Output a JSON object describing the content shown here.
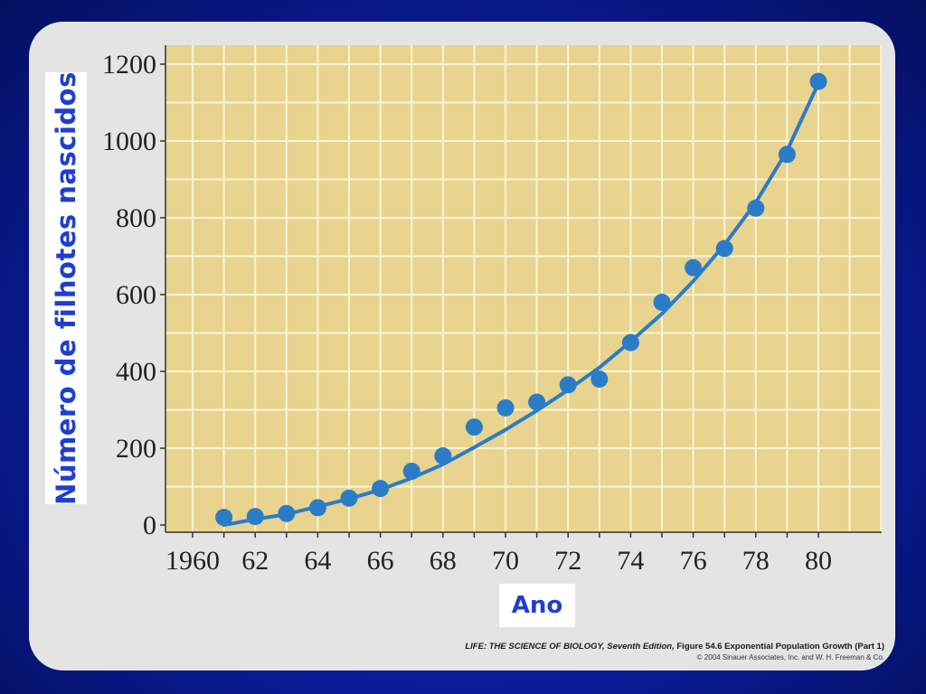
{
  "chart_data": {
    "type": "scatter",
    "xlabel": "Ano",
    "ylabel": "Número de filhotes nascidos",
    "x_ticks": [
      "1960",
      "62",
      "64",
      "66",
      "68",
      "70",
      "72",
      "74",
      "76",
      "78",
      "80"
    ],
    "x_tick_values": [
      1960,
      1962,
      1964,
      1966,
      1968,
      1970,
      1972,
      1974,
      1976,
      1978,
      1980
    ],
    "y_ticks": [
      "0",
      "200",
      "400",
      "600",
      "800",
      "1000",
      "1200"
    ],
    "y_tick_values": [
      0,
      200,
      400,
      600,
      800,
      1000,
      1200
    ],
    "xlim": [
      1959,
      1982
    ],
    "ylim": [
      0,
      1200
    ],
    "grid": true,
    "colors": {
      "background": "#e8d38f",
      "grid": "#fbf3d4",
      "points": "#2a7cc7",
      "curve": "#2a7cc7"
    },
    "points": [
      {
        "x": 1961,
        "y": 20
      },
      {
        "x": 1962,
        "y": 22
      },
      {
        "x": 1963,
        "y": 30
      },
      {
        "x": 1964,
        "y": 45
      },
      {
        "x": 1965,
        "y": 70
      },
      {
        "x": 1966,
        "y": 95
      },
      {
        "x": 1967,
        "y": 140
      },
      {
        "x": 1968,
        "y": 180
      },
      {
        "x": 1969,
        "y": 255
      },
      {
        "x": 1970,
        "y": 305
      },
      {
        "x": 1971,
        "y": 320
      },
      {
        "x": 1972,
        "y": 365
      },
      {
        "x": 1973,
        "y": 380
      },
      {
        "x": 1974,
        "y": 475
      },
      {
        "x": 1975,
        "y": 580
      },
      {
        "x": 1976,
        "y": 670
      },
      {
        "x": 1977,
        "y": 720
      },
      {
        "x": 1978,
        "y": 825
      },
      {
        "x": 1979,
        "y": 965
      },
      {
        "x": 1980,
        "y": 1155
      }
    ],
    "fit_curve": {
      "type": "exponential",
      "x": [
        1961,
        1962,
        1963,
        1964,
        1965,
        1966,
        1967,
        1968,
        1969,
        1970,
        1971,
        1972,
        1973,
        1974,
        1975,
        1976,
        1977,
        1978,
        1979,
        1980
      ],
      "y": [
        0,
        15,
        28,
        48,
        68,
        92,
        122,
        158,
        202,
        248,
        298,
        352,
        410,
        478,
        550,
        635,
        730,
        840,
        975,
        1150
      ]
    }
  },
  "caption": {
    "title_italic": "LIFE: THE SCIENCE OF BIOLOGY,",
    "edition_italic": "Seventh Edition,",
    "figure_text": "Figure 54.6 Exponential Population Growth (Part 1)",
    "copyright": "© 2004 Sinauer Associates, Inc. and W. H. Freeman & Co."
  }
}
